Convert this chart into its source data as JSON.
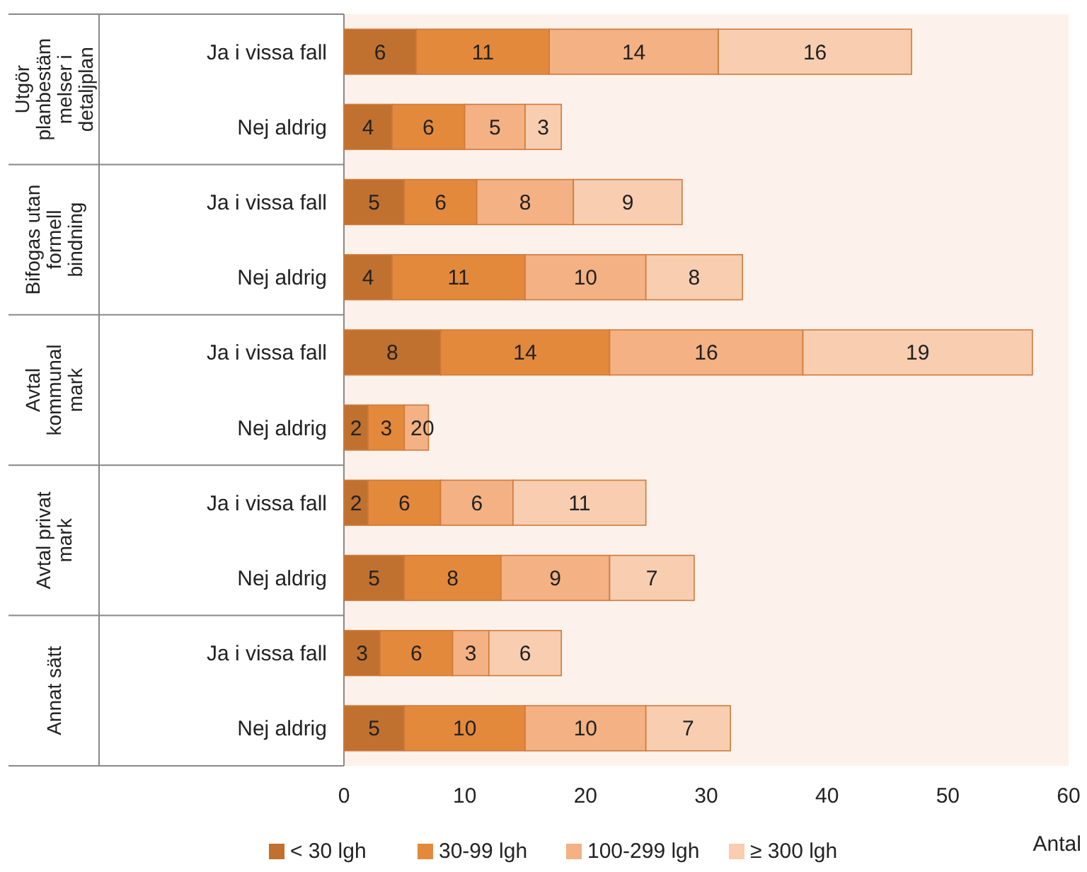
{
  "chart_data": {
    "type": "bar",
    "orientation": "horizontal",
    "stacked": true,
    "data_labels": true,
    "legend": "bottom",
    "xlabel": "Antal",
    "xlim": [
      0,
      60
    ],
    "xticks": [
      0,
      10,
      20,
      30,
      40,
      50,
      60
    ],
    "categories": [
      "Ja i vissa fall",
      "Nej aldrig",
      "Ja i vissa fall",
      "Nej aldrig",
      "Ja i vissa fall",
      "Nej aldrig",
      "Ja i vissa fall",
      "Nej aldrig",
      "Ja i vissa fall",
      "Nej aldrig"
    ],
    "annotations": [
      "Utgör\nplanbestäm\nmelser i\ndetaljplan",
      "Bifogas utan\nformell\nbindning",
      "Avtal\nkommunal\nmark",
      "Avtal privat\nmark",
      "Annat sätt"
    ],
    "series": [
      {
        "name": "< 30 lgh",
        "color": "#c0712f",
        "values": [
          6,
          4,
          5,
          4,
          8,
          2,
          2,
          5,
          3,
          5
        ]
      },
      {
        "name": "30-99 lgh",
        "color": "#e3893c",
        "values": [
          11,
          6,
          6,
          11,
          14,
          3,
          6,
          8,
          6,
          10
        ]
      },
      {
        "name": "100-299 lgh",
        "color": "#f4b183",
        "values": [
          14,
          5,
          8,
          10,
          16,
          2,
          6,
          9,
          3,
          10
        ]
      },
      {
        "name": "≥ 300 lgh",
        "color": "#f8cdb0",
        "values": [
          16,
          3,
          9,
          8,
          19,
          0,
          11,
          7,
          6,
          7
        ]
      }
    ]
  }
}
